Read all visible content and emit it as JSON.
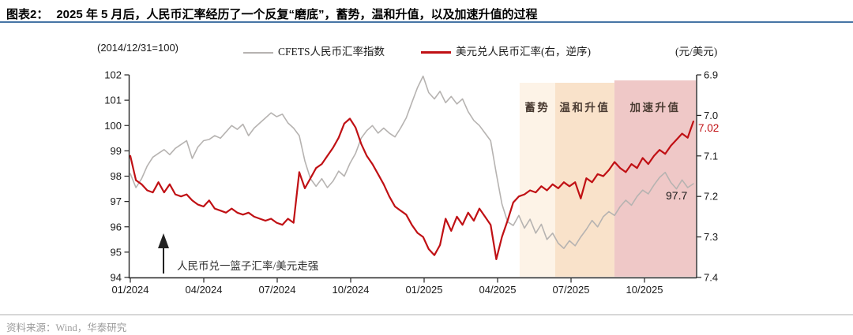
{
  "header": {
    "label": "图表2：",
    "title": "2025 年 5 月后，人民币汇率经历了一个反复“磨底”，蓄势，温和升值，以及加速升值的过程"
  },
  "legend": {
    "left_axis_unit": "(2014/12/31=100)",
    "right_axis_unit": "(元/美元)",
    "series": [
      {
        "label": "CFETS人民币汇率指数",
        "color": "#b6b3b1"
      },
      {
        "label": "美元兑人民币汇率(右，逆序)",
        "color": "#c01014"
      }
    ]
  },
  "annotations": {
    "arrow_note": "人民币兑一篮子汇率/美元走强",
    "last_red_value": "7.02",
    "last_gray_value": "97.7"
  },
  "source": "资料来源：Wind，华泰研究",
  "chart_data": {
    "type": "line",
    "title": "",
    "x_start": "2024-01-01",
    "interval_days": 7,
    "grid": false,
    "x_ticks": [
      {
        "label": "01/2024",
        "month_index": 0
      },
      {
        "label": "04/2024",
        "month_index": 3
      },
      {
        "label": "07/2024",
        "month_index": 6
      },
      {
        "label": "10/2024",
        "month_index": 9
      },
      {
        "label": "01/2025",
        "month_index": 12
      },
      {
        "label": "04/2025",
        "month_index": 15
      },
      {
        "label": "07/2025",
        "month_index": 18
      },
      {
        "label": "10/2025",
        "month_index": 21
      }
    ],
    "x_end_month_index": 23.1,
    "left_axis": {
      "min": 94,
      "max": 102,
      "tick_step": 1
    },
    "right_axis": {
      "min": 6.9,
      "max": 7.4,
      "tick_step": 0.1,
      "inverted": true
    },
    "regions": [
      {
        "label": "蓄势",
        "start_month": 15.9,
        "end_month": 17.35,
        "color": "#fdf3e7"
      },
      {
        "label": "温和升值",
        "start_month": 17.35,
        "end_month": 19.77,
        "color": "#f9e2ca"
      },
      {
        "label": "加速升值",
        "start_month": 19.77,
        "end_month": 23.1,
        "color": "#efc8c7"
      }
    ],
    "series": [
      {
        "name": "CFETS人民币汇率指数",
        "axis": "left",
        "color": "#b6b3b1",
        "width": 1.6,
        "values": [
          98.1,
          97.55,
          97.9,
          98.4,
          98.75,
          98.9,
          99.05,
          98.85,
          99.1,
          99.25,
          99.4,
          98.7,
          99.15,
          99.4,
          99.45,
          99.6,
          99.5,
          99.75,
          100.0,
          99.85,
          100.05,
          99.6,
          99.9,
          100.1,
          100.3,
          100.5,
          100.35,
          100.45,
          100.1,
          99.9,
          99.6,
          98.6,
          97.9,
          97.6,
          97.9,
          97.55,
          97.8,
          98.2,
          98.0,
          98.5,
          98.9,
          99.5,
          99.8,
          100.0,
          99.7,
          99.9,
          99.7,
          99.55,
          99.9,
          100.3,
          100.9,
          101.5,
          101.95,
          101.3,
          101.05,
          101.35,
          100.9,
          101.15,
          100.85,
          101.05,
          100.55,
          100.2,
          100.0,
          99.7,
          99.4,
          98.1,
          96.9,
          96.2,
          96.05,
          96.45,
          95.95,
          96.3,
          95.75,
          96.1,
          95.5,
          95.75,
          95.35,
          95.15,
          95.45,
          95.25,
          95.6,
          95.9,
          96.25,
          96.0,
          96.4,
          96.6,
          96.45,
          96.8,
          97.05,
          96.85,
          97.2,
          97.45,
          97.3,
          97.65,
          97.95,
          98.15,
          97.75,
          97.5,
          97.85,
          97.55,
          97.7
        ]
      },
      {
        "name": "美元兑人民币汇率(右，逆序)",
        "axis": "right",
        "color": "#c01014",
        "width": 2.2,
        "values": [
          7.1,
          7.16,
          7.17,
          7.185,
          7.19,
          7.165,
          7.19,
          7.17,
          7.195,
          7.2,
          7.195,
          7.21,
          7.22,
          7.225,
          7.21,
          7.23,
          7.235,
          7.24,
          7.23,
          7.24,
          7.245,
          7.24,
          7.25,
          7.255,
          7.26,
          7.255,
          7.265,
          7.27,
          7.255,
          7.265,
          7.14,
          7.18,
          7.155,
          7.13,
          7.12,
          7.1,
          7.08,
          7.055,
          7.02,
          7.008,
          7.03,
          7.07,
          7.1,
          7.12,
          7.145,
          7.17,
          7.2,
          7.225,
          7.235,
          7.245,
          7.27,
          7.29,
          7.3,
          7.33,
          7.345,
          7.32,
          7.255,
          7.285,
          7.25,
          7.27,
          7.24,
          7.26,
          7.23,
          7.25,
          7.27,
          7.355,
          7.3,
          7.26,
          7.215,
          7.2,
          7.195,
          7.185,
          7.19,
          7.175,
          7.185,
          7.17,
          7.18,
          7.165,
          7.175,
          7.165,
          7.205,
          7.155,
          7.165,
          7.145,
          7.15,
          7.135,
          7.115,
          7.13,
          7.14,
          7.12,
          7.13,
          7.105,
          7.12,
          7.1,
          7.085,
          7.095,
          7.075,
          7.06,
          7.045,
          7.055,
          7.015
        ]
      }
    ]
  }
}
